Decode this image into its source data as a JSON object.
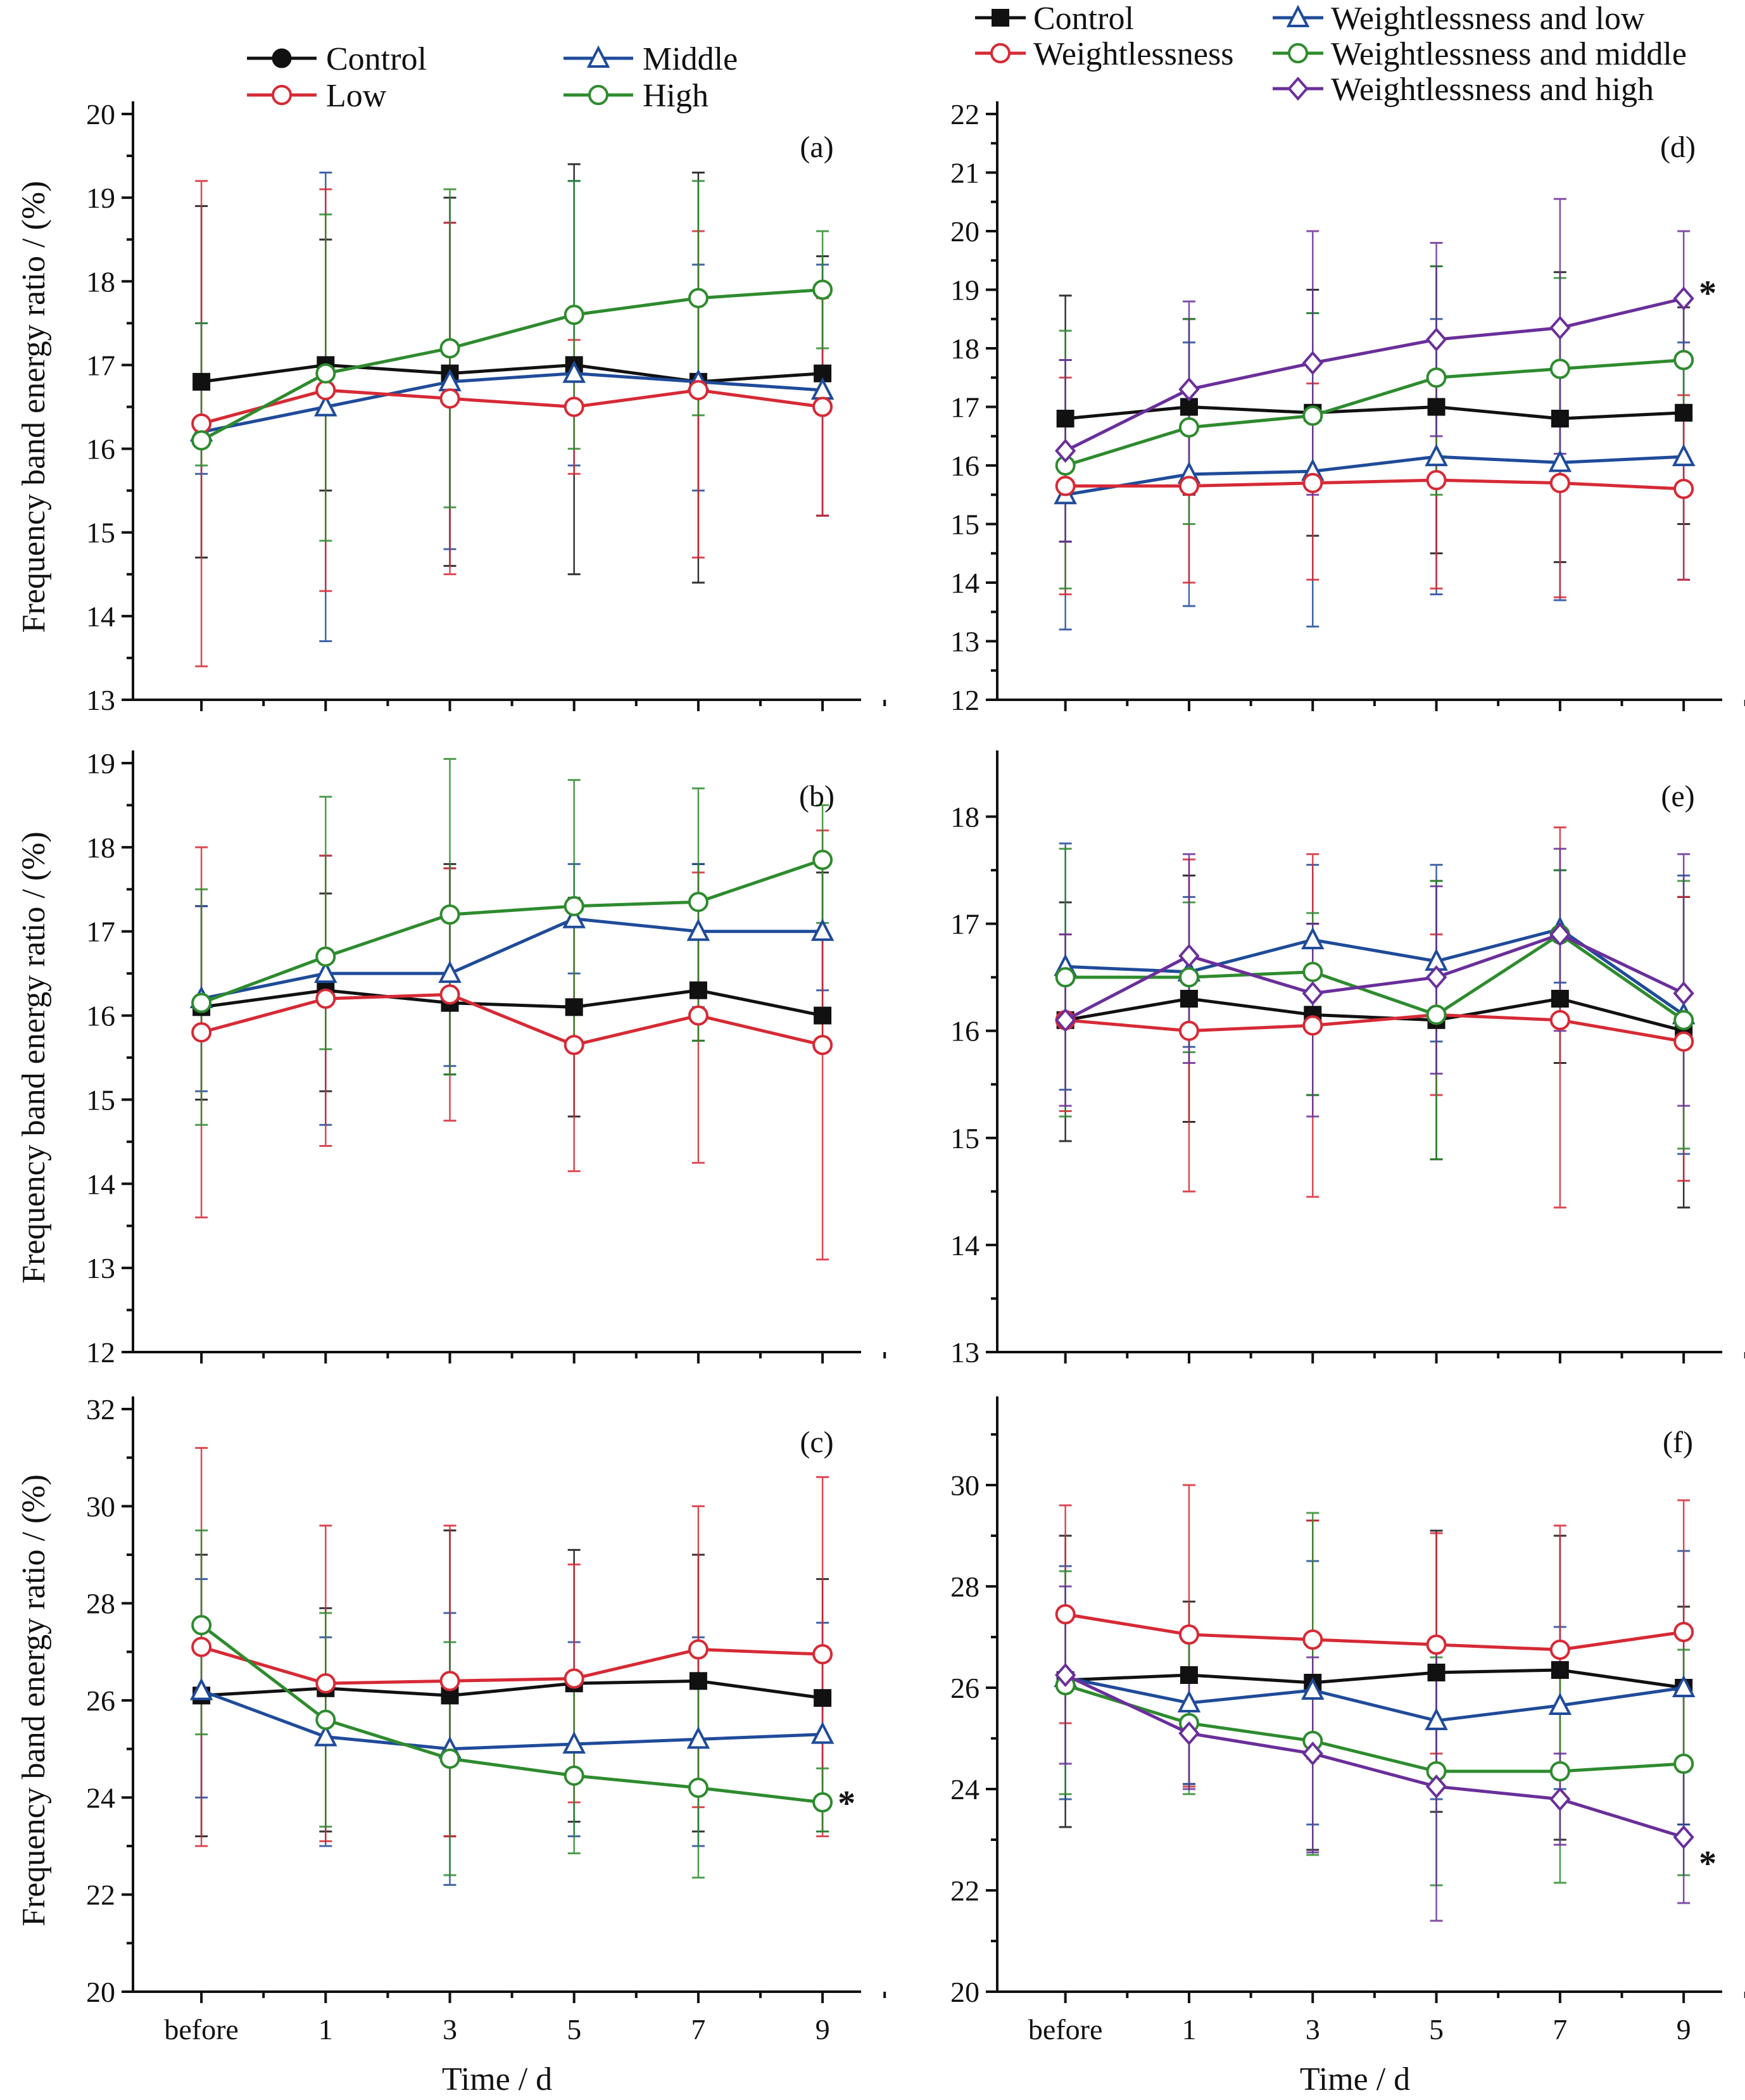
{
  "colors": {
    "control": "#111111",
    "low": "#d62a35",
    "middle": "#1f4b99",
    "high": "#2e8b2e",
    "weightless_high": "#6a2f9a"
  },
  "left_legend": [
    {
      "label": "Control",
      "key": "control",
      "marker": "circle"
    },
    {
      "label": "Middle",
      "key": "middle",
      "marker": "triangle"
    },
    {
      "label": "Low",
      "key": "low",
      "marker": "circle-open"
    },
    {
      "label": "High",
      "key": "high",
      "marker": "circle-open"
    }
  ],
  "right_legend": [
    {
      "label": "Control",
      "key": "control",
      "marker": "square"
    },
    {
      "label": "Weightlessness and low",
      "key": "middle",
      "marker": "triangle"
    },
    {
      "label": "Weightlessness",
      "key": "low",
      "marker": "circle-open"
    },
    {
      "label": "Weightlessness and middle",
      "key": "high",
      "marker": "circle-open"
    },
    {
      "label": "Weightlessness and high",
      "key": "weightless_high",
      "marker": "diamond"
    }
  ],
  "axis_titles": {
    "ylabel": "Frequency band energy ratio / (%)",
    "xlabel": "Time / d"
  },
  "chart_data": [
    {
      "type": "line",
      "panel": "(a)",
      "categories": [
        "before",
        "1",
        "3",
        "5",
        "7",
        "9"
      ],
      "ylim": [
        13,
        20
      ],
      "yticks": [
        13,
        14,
        15,
        16,
        17,
        18,
        19,
        20
      ],
      "series": [
        {
          "name": "Control",
          "key": "control",
          "marker": "square",
          "values": [
            16.8,
            17.0,
            16.9,
            17.0,
            16.8,
            16.9
          ]
        },
        {
          "name": "Middle",
          "key": "middle",
          "marker": "triangle",
          "values": [
            16.2,
            16.5,
            16.8,
            16.9,
            16.8,
            16.7
          ]
        },
        {
          "name": "Low",
          "key": "low",
          "marker": "circle-open",
          "values": [
            16.3,
            16.7,
            16.6,
            16.5,
            16.7,
            16.5
          ]
        },
        {
          "name": "High",
          "key": "high",
          "marker": "circle-open",
          "values": [
            16.1,
            16.9,
            17.2,
            17.6,
            17.8,
            17.9
          ]
        }
      ],
      "errorbars": [
        {
          "key": "control",
          "lo": [
            14.7,
            15.5,
            14.6,
            14.5,
            14.4,
            15.2
          ],
          "hi": [
            18.9,
            18.5,
            19.0,
            19.4,
            19.3,
            18.3
          ]
        },
        {
          "key": "middle",
          "lo": [
            15.7,
            13.7,
            14.8,
            15.8,
            15.5,
            15.2
          ],
          "hi": [
            17.5,
            19.3,
            18.7,
            19.2,
            18.2,
            18.2
          ]
        },
        {
          "key": "low",
          "lo": [
            13.4,
            14.3,
            14.5,
            15.7,
            14.7,
            15.2
          ],
          "hi": [
            19.2,
            19.1,
            18.7,
            17.3,
            18.6,
            17.8
          ]
        },
        {
          "key": "high",
          "lo": [
            15.8,
            14.9,
            15.3,
            16.0,
            16.4,
            17.2
          ],
          "hi": [
            17.5,
            18.8,
            19.1,
            19.2,
            19.2,
            18.6
          ]
        }
      ]
    },
    {
      "type": "line",
      "panel": "(b)",
      "categories": [
        "before",
        "1",
        "3",
        "5",
        "7",
        "9"
      ],
      "ylim": [
        12,
        19
      ],
      "yticks": [
        12,
        13,
        14,
        15,
        16,
        17,
        18,
        19
      ],
      "series": [
        {
          "name": "Control",
          "key": "control",
          "marker": "square",
          "values": [
            16.1,
            16.3,
            16.15,
            16.1,
            16.3,
            16.0
          ]
        },
        {
          "name": "Middle",
          "key": "middle",
          "marker": "triangle",
          "values": [
            16.2,
            16.5,
            16.5,
            17.15,
            17.0,
            17.0
          ]
        },
        {
          "name": "Low",
          "key": "low",
          "marker": "circle-open",
          "values": [
            15.8,
            16.2,
            16.25,
            15.65,
            16.0,
            15.65
          ]
        },
        {
          "name": "High",
          "key": "high",
          "marker": "circle-open",
          "values": [
            16.15,
            16.7,
            17.2,
            17.3,
            17.35,
            17.85
          ]
        }
      ],
      "errorbars": [
        {
          "key": "control",
          "lo": [
            15.0,
            15.1,
            15.3,
            14.8,
            15.7,
            15.7
          ],
          "hi": [
            17.3,
            17.45,
            17.8,
            17.4,
            17.8,
            17.7
          ]
        },
        {
          "key": "middle",
          "lo": [
            15.1,
            14.7,
            15.4,
            16.5,
            16.1,
            16.3
          ],
          "hi": [
            17.3,
            17.9,
            17.75,
            17.8,
            17.8,
            17.9
          ]
        },
        {
          "key": "low",
          "lo": [
            13.6,
            14.45,
            14.75,
            14.15,
            14.25,
            13.1
          ],
          "hi": [
            18.0,
            17.9,
            17.75,
            17.1,
            17.7,
            18.2
          ]
        },
        {
          "key": "high",
          "lo": [
            14.7,
            15.6,
            15.3,
            15.7,
            15.7,
            17.1
          ],
          "hi": [
            17.5,
            18.6,
            19.05,
            18.8,
            18.7,
            18.5
          ]
        }
      ]
    },
    {
      "type": "line",
      "panel": "(c)",
      "categories": [
        "before",
        "1",
        "3",
        "5",
        "7",
        "9"
      ],
      "ylim": [
        20,
        32
      ],
      "yticks": [
        20,
        22,
        24,
        26,
        28,
        30,
        32
      ],
      "annotation": "*",
      "series": [
        {
          "name": "Control",
          "key": "control",
          "marker": "square",
          "values": [
            26.1,
            26.25,
            26.1,
            26.35,
            26.4,
            26.05
          ]
        },
        {
          "name": "Middle",
          "key": "middle",
          "marker": "triangle",
          "values": [
            26.2,
            25.25,
            25.0,
            25.1,
            25.2,
            25.3
          ]
        },
        {
          "name": "Low",
          "key": "low",
          "marker": "circle-open",
          "values": [
            27.1,
            26.35,
            26.4,
            26.45,
            27.05,
            26.95
          ]
        },
        {
          "name": "High",
          "key": "high",
          "marker": "circle-open",
          "values": [
            27.55,
            25.6,
            24.8,
            24.45,
            24.2,
            23.9
          ]
        }
      ],
      "errorbars": [
        {
          "key": "control",
          "lo": [
            23.2,
            23.3,
            23.2,
            23.5,
            23.3,
            23.3
          ],
          "hi": [
            29.0,
            27.9,
            29.5,
            29.1,
            29.0,
            28.5
          ]
        },
        {
          "key": "middle",
          "lo": [
            24.0,
            23.0,
            22.2,
            23.2,
            23.0,
            23.3
          ],
          "hi": [
            28.5,
            27.3,
            27.8,
            27.2,
            27.3,
            27.6
          ]
        },
        {
          "key": "low",
          "lo": [
            23.0,
            23.1,
            23.2,
            23.9,
            23.8,
            23.2
          ],
          "hi": [
            31.2,
            29.6,
            29.6,
            28.8,
            30.0,
            30.6
          ]
        },
        {
          "key": "high",
          "lo": [
            25.3,
            23.4,
            22.4,
            22.85,
            22.35,
            23.3
          ],
          "hi": [
            29.5,
            27.8,
            27.2,
            26.2,
            26.3,
            24.6
          ]
        }
      ]
    },
    {
      "type": "line",
      "panel": "(d)",
      "categories": [
        "before",
        "1",
        "3",
        "5",
        "7",
        "9"
      ],
      "ylim": [
        12,
        22
      ],
      "yticks": [
        12,
        13,
        14,
        15,
        16,
        17,
        18,
        19,
        20,
        21,
        22
      ],
      "annotation": "*",
      "series": [
        {
          "name": "Control",
          "key": "control",
          "marker": "square",
          "values": [
            16.8,
            17.0,
            16.9,
            17.0,
            16.8,
            16.9
          ]
        },
        {
          "name": "Weightlessness and low",
          "key": "middle",
          "marker": "triangle",
          "values": [
            15.5,
            15.85,
            15.9,
            16.15,
            16.05,
            16.15
          ]
        },
        {
          "name": "Weightlessness",
          "key": "low",
          "marker": "circle-open",
          "values": [
            15.65,
            15.65,
            15.7,
            15.75,
            15.7,
            15.6
          ]
        },
        {
          "name": "Weightlessness and middle",
          "key": "high",
          "marker": "circle-open",
          "values": [
            16.0,
            16.65,
            16.85,
            17.5,
            17.65,
            17.8
          ]
        },
        {
          "name": "Weightlessness and high",
          "key": "weightless_high",
          "marker": "diamond",
          "values": [
            16.25,
            17.3,
            17.75,
            18.15,
            18.35,
            18.85
          ]
        }
      ],
      "errorbars": [
        {
          "key": "control",
          "lo": [
            14.7,
            15.5,
            14.8,
            14.5,
            14.35,
            15.0
          ],
          "hi": [
            18.9,
            18.5,
            19.0,
            19.4,
            19.3,
            18.7
          ]
        },
        {
          "key": "middle",
          "lo": [
            13.2,
            13.6,
            13.25,
            13.8,
            13.7,
            14.05
          ],
          "hi": [
            17.8,
            18.1,
            18.6,
            18.5,
            18.3,
            18.1
          ]
        },
        {
          "key": "low",
          "lo": [
            13.8,
            14.0,
            14.05,
            13.9,
            13.75,
            14.05
          ],
          "hi": [
            17.5,
            17.3,
            17.4,
            17.6,
            17.6,
            17.2
          ]
        },
        {
          "key": "high",
          "lo": [
            13.9,
            15.0,
            15.6,
            15.5,
            16.0,
            16.9
          ],
          "hi": [
            18.3,
            18.5,
            18.6,
            19.4,
            19.2,
            18.8
          ]
        },
        {
          "key": "weightless_high",
          "lo": [
            14.7,
            15.8,
            15.5,
            16.5,
            16.2,
            17.7
          ],
          "hi": [
            17.8,
            18.8,
            20.0,
            19.8,
            20.55,
            20.0
          ]
        }
      ]
    },
    {
      "type": "line",
      "panel": "(e)",
      "categories": [
        "before",
        "1",
        "3",
        "5",
        "7",
        "9"
      ],
      "ylim": [
        13,
        18.5
      ],
      "yticks": [
        13,
        14,
        15,
        16,
        17,
        18
      ],
      "series": [
        {
          "name": "Control",
          "key": "control",
          "marker": "square",
          "values": [
            16.1,
            16.3,
            16.15,
            16.1,
            16.3,
            16.0
          ]
        },
        {
          "name": "Weightlessness and low",
          "key": "middle",
          "marker": "triangle",
          "values": [
            16.6,
            16.55,
            16.85,
            16.65,
            16.95,
            16.15
          ]
        },
        {
          "name": "Weightlessness",
          "key": "low",
          "marker": "circle-open",
          "values": [
            16.1,
            16.0,
            16.05,
            16.15,
            16.1,
            15.9
          ]
        },
        {
          "name": "Weightlessness and middle",
          "key": "high",
          "marker": "circle-open",
          "values": [
            16.5,
            16.5,
            16.55,
            16.15,
            16.9,
            16.1
          ]
        },
        {
          "name": "Weightlessness and high",
          "key": "weightless_high",
          "marker": "diamond",
          "values": [
            16.1,
            16.7,
            16.35,
            16.5,
            16.9,
            16.35
          ]
        }
      ],
      "errorbars": [
        {
          "key": "control",
          "lo": [
            14.97,
            15.15,
            15.4,
            14.8,
            15.7,
            14.35
          ],
          "hi": [
            17.2,
            17.45,
            17.0,
            17.4,
            17.5,
            17.25
          ]
        },
        {
          "key": "middle",
          "lo": [
            15.45,
            15.85,
            16.0,
            15.9,
            16.45,
            14.85
          ],
          "hi": [
            17.75,
            17.25,
            17.55,
            17.55,
            17.5,
            17.45
          ]
        },
        {
          "key": "low",
          "lo": [
            15.25,
            14.5,
            14.45,
            15.4,
            14.35,
            14.6
          ],
          "hi": [
            16.9,
            17.6,
            17.65,
            16.9,
            17.9,
            17.25
          ]
        },
        {
          "key": "high",
          "lo": [
            15.2,
            15.8,
            15.4,
            14.8,
            16.3,
            14.9
          ],
          "hi": [
            17.7,
            17.2,
            17.1,
            17.4,
            17.5,
            17.4
          ]
        },
        {
          "key": "weightless_high",
          "lo": [
            15.3,
            15.7,
            15.2,
            15.6,
            16.0,
            15.3
          ],
          "hi": [
            16.9,
            17.65,
            17.0,
            17.35,
            17.7,
            17.65
          ]
        }
      ]
    },
    {
      "type": "line",
      "panel": "(f)",
      "categories": [
        "before",
        "1",
        "3",
        "5",
        "7",
        "9"
      ],
      "ylim": [
        20,
        31.5
      ],
      "yticks": [
        20,
        22,
        24,
        26,
        28,
        30
      ],
      "annotation": "*",
      "series": [
        {
          "name": "Control",
          "key": "control",
          "marker": "square",
          "values": [
            26.15,
            26.25,
            26.1,
            26.3,
            26.35,
            26.0
          ]
        },
        {
          "name": "Weightlessness and low",
          "key": "middle",
          "marker": "triangle",
          "values": [
            26.2,
            25.7,
            25.95,
            25.35,
            25.65,
            26.0
          ]
        },
        {
          "name": "Weightlessness",
          "key": "low",
          "marker": "circle-open",
          "values": [
            27.45,
            27.05,
            26.95,
            26.85,
            26.75,
            27.1
          ]
        },
        {
          "name": "Weightlessness and middle",
          "key": "high",
          "marker": "circle-open",
          "values": [
            26.05,
            25.3,
            24.95,
            24.35,
            24.35,
            24.5
          ]
        },
        {
          "name": "Weightlessness and high",
          "key": "weightless_high",
          "marker": "diamond",
          "values": [
            26.25,
            25.1,
            24.7,
            24.05,
            23.8,
            23.05
          ]
        }
      ],
      "errorbars": [
        {
          "key": "control",
          "lo": [
            23.25,
            24.1,
            22.8,
            23.55,
            23.0,
            23.3
          ],
          "hi": [
            29.0,
            27.7,
            29.3,
            29.1,
            29.0,
            27.6
          ]
        },
        {
          "key": "middle",
          "lo": [
            23.8,
            24.1,
            23.3,
            23.8,
            24.0,
            23.3
          ],
          "hi": [
            28.4,
            27.2,
            28.5,
            27.0,
            27.2,
            28.7
          ]
        },
        {
          "key": "low",
          "lo": [
            25.3,
            24.05,
            24.6,
            24.7,
            24.3,
            24.5
          ],
          "hi": [
            29.6,
            30.0,
            29.3,
            29.05,
            29.2,
            29.7
          ]
        },
        {
          "key": "high",
          "lo": [
            23.9,
            23.9,
            22.7,
            22.1,
            22.15,
            22.3
          ],
          "hi": [
            28.3,
            27.05,
            29.45,
            26.6,
            26.5,
            26.75
          ]
        },
        {
          "key": "weightless_high",
          "lo": [
            24.5,
            24.0,
            22.75,
            21.4,
            22.9,
            21.75
          ],
          "hi": [
            28.0,
            26.15,
            26.6,
            26.7,
            24.7,
            24.35
          ]
        }
      ]
    }
  ]
}
